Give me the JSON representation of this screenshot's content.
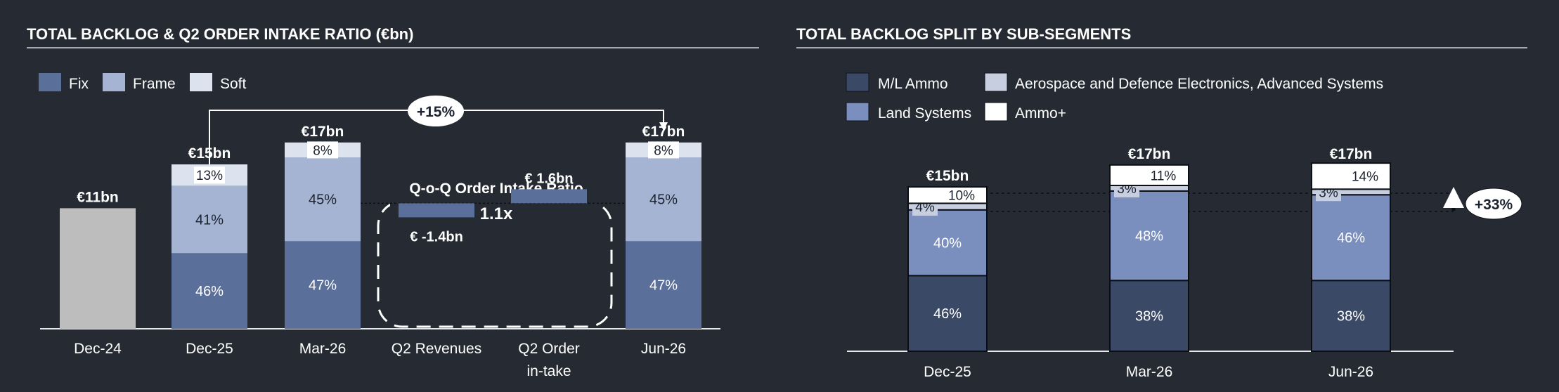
{
  "colors": {
    "background": "#262b33",
    "fix": "#5a6f9a",
    "frame": "#a5b4d2",
    "soft": "#dde3ee",
    "gray": "#bdbdbd",
    "ml_ammo": "#3a4a66",
    "land_systems": "#7b8fbe",
    "aerospace": "#c6cee0",
    "ammo_plus": "#ffffff"
  },
  "chart_data": [
    {
      "type": "bar",
      "title": "TOTAL BACKLOG & Q2 ORDER INTAKE RATIO (€bn)",
      "legend": [
        {
          "key": "fix",
          "label": "Fix"
        },
        {
          "key": "frame",
          "label": "Frame"
        },
        {
          "key": "soft",
          "label": "Soft"
        }
      ],
      "bars": [
        {
          "category": "Dec-24",
          "total": 11,
          "total_label": "€11bn",
          "segments": [
            {
              "series": "gray",
              "share": 100,
              "label": ""
            }
          ]
        },
        {
          "category": "Dec-25",
          "total": 15,
          "total_label": "€15bn",
          "segments": [
            {
              "series": "fix",
              "share": 46,
              "label": "46%"
            },
            {
              "series": "frame",
              "share": 41,
              "label": "41%"
            },
            {
              "series": "soft",
              "share": 13,
              "label": "13%"
            }
          ]
        },
        {
          "category": "Mar-26",
          "total": 17,
          "total_label": "€17bn",
          "segments": [
            {
              "series": "fix",
              "share": 47,
              "label": "47%"
            },
            {
              "series": "frame",
              "share": 45,
              "label": "45%"
            },
            {
              "series": "soft",
              "share": 8,
              "label": "8%"
            }
          ]
        },
        {
          "category": "Jun-26",
          "total": 17,
          "total_label": "€17bn",
          "segments": [
            {
              "series": "fix",
              "share": 47,
              "label": "47%"
            },
            {
              "series": "frame",
              "share": 45,
              "label": "45%"
            },
            {
              "series": "soft",
              "share": 8,
              "label": "8%"
            }
          ]
        }
      ],
      "waterfall": [
        {
          "category_lines": [
            "Q2 Revenues"
          ],
          "value": -1.4,
          "label": "€ -1.4bn"
        },
        {
          "category_lines": [
            "Q2 Order",
            "in-take"
          ],
          "value": 1.6,
          "label": "€ 1.6bn"
        }
      ],
      "ratio_box": {
        "title": "Q-o-Q Order Intake Ratio",
        "value": "1.1x"
      },
      "growth_arrow": {
        "label": "+15%",
        "from": "Dec-25",
        "to": "Jun-26"
      }
    },
    {
      "type": "bar",
      "title": "TOTAL BACKLOG SPLIT BY SUB-SEGMENTS",
      "legend": [
        {
          "key": "ml_ammo",
          "label": "M/L Ammo"
        },
        {
          "key": "aerospace",
          "label": "Aerospace and Defence Electronics, Advanced Systems"
        },
        {
          "key": "land_systems",
          "label": "Land Systems"
        },
        {
          "key": "ammo_plus",
          "label": "Ammo+"
        }
      ],
      "bars": [
        {
          "category": "Dec-25",
          "total": 15,
          "total_label": "€15bn",
          "segments": [
            {
              "series": "ml_ammo",
              "share": 46,
              "label": "46%"
            },
            {
              "series": "land_systems",
              "share": 40,
              "label": "40%"
            },
            {
              "series": "aerospace",
              "share": 4,
              "label": "4%"
            },
            {
              "series": "ammo_plus",
              "share": 10,
              "label": "10%"
            }
          ]
        },
        {
          "category": "Mar-26",
          "total": 17,
          "total_label": "€17bn",
          "segments": [
            {
              "series": "ml_ammo",
              "share": 38,
              "label": "38%"
            },
            {
              "series": "land_systems",
              "share": 48,
              "label": "48%"
            },
            {
              "series": "aerospace",
              "share": 3,
              "label": "3%"
            },
            {
              "series": "ammo_plus",
              "share": 11,
              "label": "11%"
            }
          ]
        },
        {
          "category": "Jun-26",
          "total": 17,
          "total_label": "€17bn",
          "segments": [
            {
              "series": "ml_ammo",
              "share": 38,
              "label": "38%"
            },
            {
              "series": "land_systems",
              "share": 46,
              "label": "46%"
            },
            {
              "series": "aerospace",
              "share": 3,
              "label": "3%"
            },
            {
              "series": "ammo_plus",
              "share": 14,
              "label": "14%"
            }
          ]
        }
      ],
      "growth_callout": {
        "label": "+33%"
      }
    }
  ]
}
